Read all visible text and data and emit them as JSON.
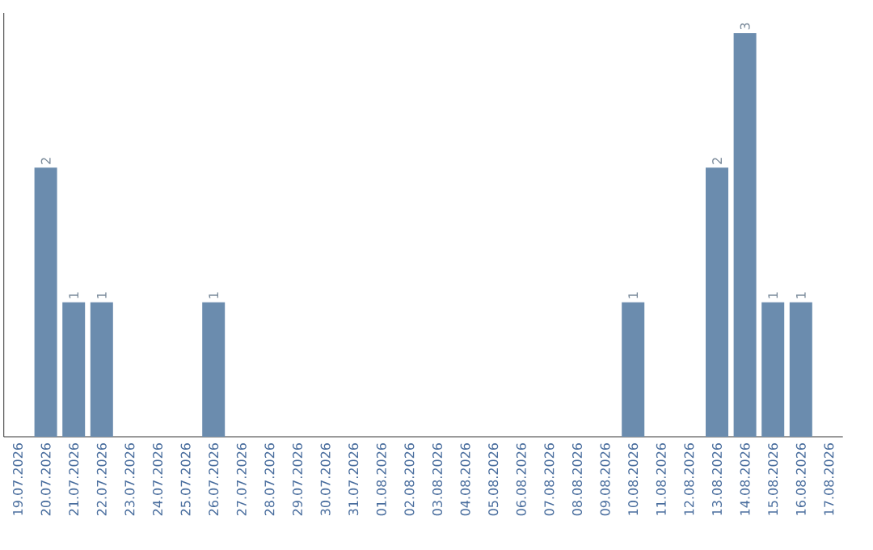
{
  "chart_data": {
    "type": "bar",
    "color": "#6b8cae",
    "categories": [
      "19.07.2026",
      "20.07.2026",
      "21.07.2026",
      "22.07.2026",
      "23.07.2026",
      "24.07.2026",
      "25.07.2026",
      "26.07.2026",
      "27.07.2026",
      "28.07.2026",
      "29.07.2026",
      "30.07.2026",
      "31.07.2026",
      "01.08.2026",
      "02.08.2026",
      "03.08.2026",
      "04.08.2026",
      "05.08.2026",
      "06.08.2026",
      "07.08.2026",
      "08.08.2026",
      "09.08.2026",
      "10.08.2026",
      "11.08.2026",
      "12.08.2026",
      "13.08.2026",
      "14.08.2026",
      "15.08.2026",
      "16.08.2026",
      "17.08.2026"
    ],
    "values": [
      0,
      2,
      1,
      1,
      0,
      0,
      0,
      1,
      0,
      0,
      0,
      0,
      0,
      0,
      0,
      0,
      0,
      0,
      0,
      0,
      0,
      0,
      1,
      0,
      0,
      2,
      3,
      1,
      1,
      0
    ],
    "value_labels": [
      null,
      "2",
      "1",
      "1",
      null,
      null,
      null,
      "1",
      null,
      null,
      null,
      null,
      null,
      null,
      null,
      null,
      null,
      null,
      null,
      null,
      null,
      null,
      "1",
      null,
      null,
      "2",
      "3",
      "1",
      "1",
      null
    ],
    "tick_labels": "x"
  }
}
